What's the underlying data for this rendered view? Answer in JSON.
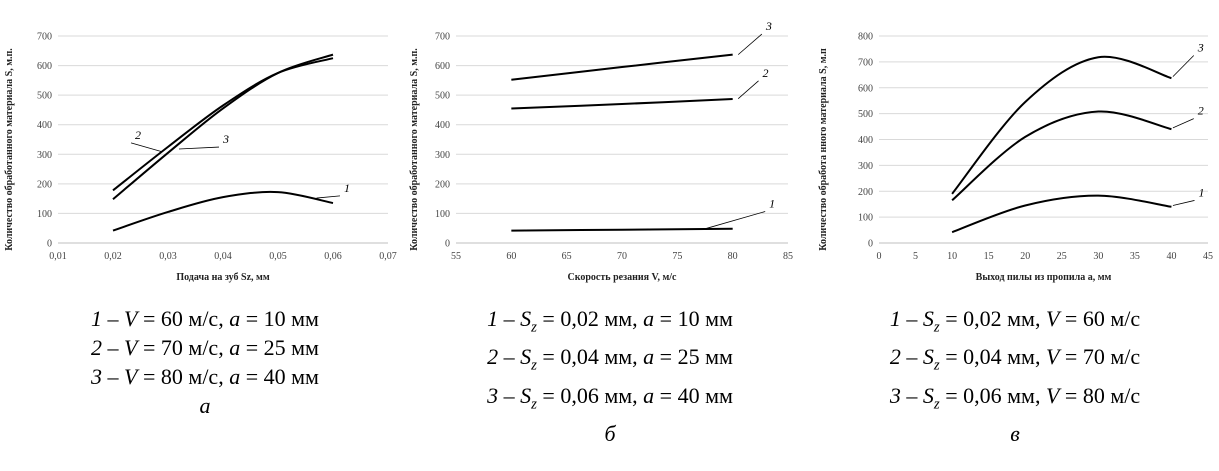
{
  "chart_data": [
    {
      "type": "line",
      "panel": "а",
      "xlabel": "Подача на зуб Sz, мм",
      "ylabel": "Количество обработанного материала S, м.п.",
      "xlim": [
        0.01,
        0.07
      ],
      "ylim": [
        0,
        700
      ],
      "xticks": [
        "0,01",
        "0,02",
        "0,03",
        "0,04",
        "0,05",
        "0,06",
        "0,07"
      ],
      "yticks": [
        "0",
        "100",
        "200",
        "300",
        "400",
        "500",
        "600",
        "700"
      ],
      "grid": "horizontal",
      "series": [
        {
          "name": "1",
          "x": [
            0.02,
            0.03,
            0.04,
            0.05,
            0.06
          ],
          "y": [
            42,
            105,
            155,
            172,
            135
          ]
        },
        {
          "name": "2",
          "x": [
            0.02,
            0.03,
            0.04,
            0.05,
            0.06
          ],
          "y": [
            178,
            325,
            465,
            575,
            625
          ]
        },
        {
          "name": "3",
          "x": [
            0.02,
            0.03,
            0.04,
            0.05,
            0.06
          ],
          "y": [
            148,
            305,
            455,
            575,
            637
          ]
        }
      ],
      "legend": [
        {
          "num": "1",
          "p1_sym": "V",
          "p1_sub": "",
          "p1_val": "60 м/с",
          "p2_sym": "a",
          "p2_val": "10 мм"
        },
        {
          "num": "2",
          "p1_sym": "V",
          "p1_sub": "",
          "p1_val": "70 м/с",
          "p2_sym": "a",
          "p2_val": "25 мм"
        },
        {
          "num": "3",
          "p1_sym": "V",
          "p1_sub": "",
          "p1_val": "80 м/с",
          "p2_sym": "a",
          "p2_val": "40 мм"
        }
      ]
    },
    {
      "type": "line",
      "panel": "б",
      "xlabel": "Скорость резания V, м/с",
      "ylabel": "Количество обработанного материала S, м.п.",
      "xlim": [
        55,
        85
      ],
      "ylim": [
        0,
        700
      ],
      "xticks": [
        "55",
        "60",
        "65",
        "70",
        "75",
        "80",
        "85"
      ],
      "yticks": [
        "0",
        "100",
        "200",
        "300",
        "400",
        "500",
        "600",
        "700"
      ],
      "grid": "horizontal",
      "series": [
        {
          "name": "1",
          "x": [
            60,
            70,
            80
          ],
          "y": [
            42,
            45,
            48
          ]
        },
        {
          "name": "2",
          "x": [
            60,
            70,
            80
          ],
          "y": [
            455,
            470,
            487
          ]
        },
        {
          "name": "3",
          "x": [
            60,
            70,
            80
          ],
          "y": [
            552,
            595,
            637
          ]
        }
      ],
      "legend": [
        {
          "num": "1",
          "p1_sym": "S",
          "p1_sub": "z",
          "p1_val": "0,02 мм",
          "p2_sym": "a",
          "p2_val": "10 мм"
        },
        {
          "num": "2",
          "p1_sym": "S",
          "p1_sub": "z",
          "p1_val": "0,04 мм",
          "p2_sym": "a",
          "p2_val": "25 мм"
        },
        {
          "num": "3",
          "p1_sym": "S",
          "p1_sub": "z",
          "p1_val": "0,06 мм",
          "p2_sym": "a",
          "p2_val": "40 мм"
        }
      ]
    },
    {
      "type": "line",
      "panel": "в",
      "xlabel": "Выход пилы из пропила a, мм",
      "ylabel": "Количество обработа нного материала S, м.п",
      "xlim": [
        0,
        45
      ],
      "ylim": [
        0,
        800
      ],
      "xticks": [
        "0",
        "5",
        "10",
        "15",
        "20",
        "25",
        "30",
        "35",
        "40",
        "45"
      ],
      "yticks": [
        "0",
        "100",
        "200",
        "300",
        "400",
        "500",
        "600",
        "700",
        "800"
      ],
      "grid": "horizontal",
      "series": [
        {
          "name": "1",
          "x": [
            10,
            20,
            30,
            40
          ],
          "y": [
            42,
            145,
            183,
            140
          ]
        },
        {
          "name": "2",
          "x": [
            10,
            20,
            30,
            40
          ],
          "y": [
            165,
            410,
            508,
            440
          ]
        },
        {
          "name": "3",
          "x": [
            10,
            20,
            30,
            40
          ],
          "y": [
            190,
            545,
            718,
            637
          ]
        }
      ],
      "legend": [
        {
          "num": "1",
          "p1_sym": "S",
          "p1_sub": "z",
          "p1_val": "0,02 мм",
          "p2_sym": "V",
          "p2_val": "60 м/с"
        },
        {
          "num": "2",
          "p1_sym": "S",
          "p1_sub": "z",
          "p1_val": "0,04 мм",
          "p2_sym": "V",
          "p2_val": "70 м/с"
        },
        {
          "num": "3",
          "p1_sym": "S",
          "p1_sub": "z",
          "p1_val": "0,06 мм",
          "p2_sym": "V",
          "p2_val": "80 м/с"
        }
      ]
    }
  ]
}
